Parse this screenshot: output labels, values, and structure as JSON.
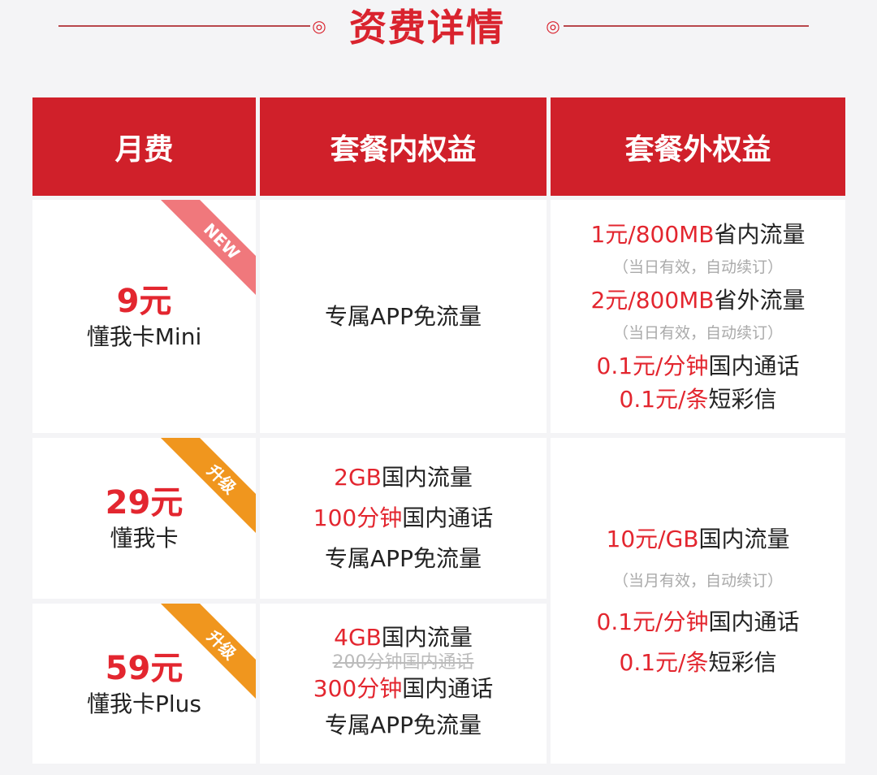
{
  "title": "资费详情",
  "colors": {
    "accent": "#d0202a",
    "price_red": "#e3262f",
    "new_ribbon": "#f0787c",
    "upgrade_ribbon": "#f0961e"
  },
  "headers": [
    "月费",
    "套餐内权益",
    "套餐外权益"
  ],
  "plans": [
    {
      "ribbon": "NEW",
      "price": "9元",
      "name": "懂我卡Mini",
      "benefits": [
        {
          "red": "",
          "black": "专属APP免流量"
        }
      ]
    },
    {
      "ribbon": "升级",
      "price": "29元",
      "name": "懂我卡",
      "benefits": [
        {
          "red": "2GB",
          "black": "国内流量"
        },
        {
          "red": "100分钟",
          "black": "国内通话"
        },
        {
          "red": "",
          "black": "专属APP免流量"
        }
      ]
    },
    {
      "ribbon": "升级",
      "price": "59元",
      "name": "懂我卡Plus",
      "benefits": [
        {
          "red": "4GB",
          "black": "国内流量"
        },
        {
          "red": "300分钟",
          "black": "国内通话"
        },
        {
          "red": "",
          "black": "专属APP免流量"
        }
      ],
      "struck": "200分钟国内通话"
    }
  ],
  "extra": [
    {
      "items": [
        {
          "red": "1元/800MB",
          "black": "省内流量"
        },
        {
          "note": "（当日有效，自动续订）"
        },
        {
          "red": "2元/800MB",
          "black": "省外流量"
        },
        {
          "note": "（当日有效，自动续订）"
        },
        {
          "red": "0.1元/分钟",
          "black": "国内通话"
        },
        {
          "red": "0.1元/条",
          "black": "短彩信"
        }
      ]
    },
    {
      "items": [
        {
          "red": "10元/GB",
          "black": "国内流量"
        },
        {
          "note": "（当月有效，自动续订）"
        },
        {
          "red": "0.1元/分钟",
          "black": "国内通话"
        },
        {
          "red": "0.1元/条",
          "black": "短彩信"
        }
      ]
    }
  ]
}
